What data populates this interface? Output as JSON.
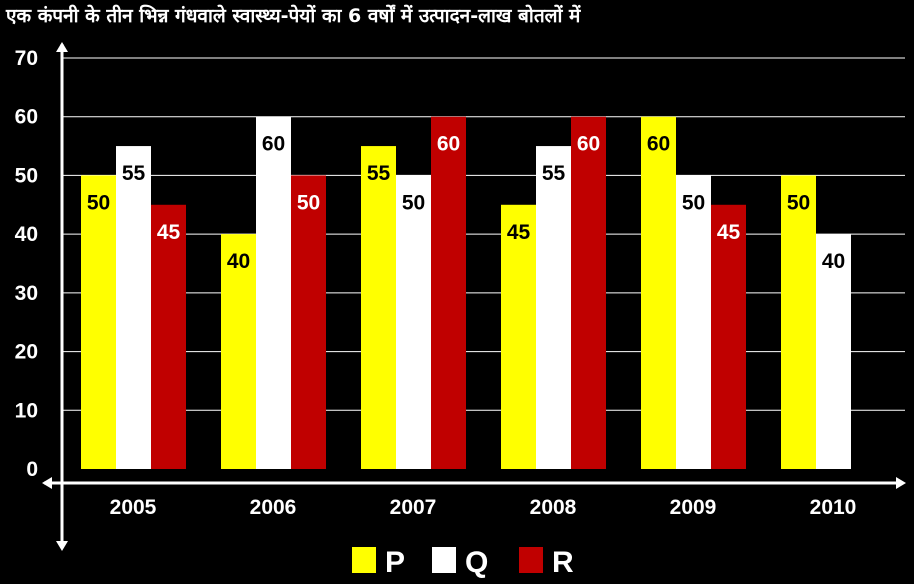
{
  "chart_data": {
    "type": "bar",
    "title": "एक कंपनी के तीन भिन्न गंधवाले स्वास्थ्य-पेयों का 6 वर्षों में उत्पादन-लाख बोतलों में",
    "categories": [
      "2005",
      "2006",
      "2007",
      "2008",
      "2009",
      "2010"
    ],
    "series": [
      {
        "name": "P",
        "color": "#ffff00",
        "label_color": "#000000",
        "values": [
          50,
          40,
          55,
          45,
          60,
          50
        ]
      },
      {
        "name": "Q",
        "color": "#ffffff",
        "label_color": "#000000",
        "values": [
          55,
          60,
          50,
          55,
          50,
          40
        ]
      },
      {
        "name": "R",
        "color": "#c00000",
        "label_color": "#ffffff",
        "values": [
          45,
          50,
          60,
          60,
          45,
          null
        ]
      }
    ],
    "ylim": [
      0,
      70
    ],
    "yticks": [
      0,
      10,
      20,
      30,
      40,
      50,
      60,
      70
    ],
    "grid": true,
    "legend_position": "bottom",
    "background": "#000000",
    "grid_color": "#ffffff"
  }
}
